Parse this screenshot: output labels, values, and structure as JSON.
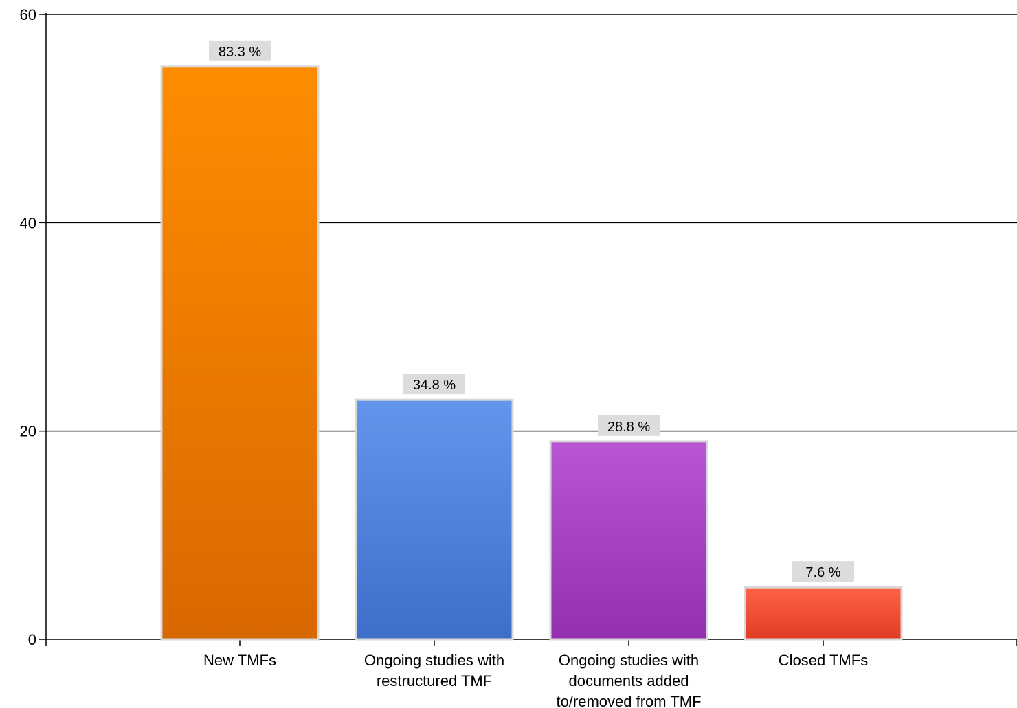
{
  "chart_data": {
    "type": "bar",
    "title": "",
    "xlabel": "",
    "ylabel": "",
    "categories": [
      [
        "New TMFs"
      ],
      [
        "Ongoing studies with",
        "restructured TMF"
      ],
      [
        "Ongoing studies with",
        "documents added",
        "to/removed from TMF"
      ],
      [
        "Closed TMFs"
      ]
    ],
    "values": [
      55,
      23,
      19,
      5
    ],
    "data_labels": [
      "83.3 %",
      "34.8 %",
      "28.8 %",
      "7.6 %"
    ],
    "ylim": [
      0,
      60
    ],
    "yticks": [
      0,
      20,
      40,
      60
    ],
    "grid": true,
    "colors": [
      {
        "top": "#ff8c00",
        "bottom": "#d86800"
      },
      {
        "top": "#6495ed",
        "bottom": "#3e6fc8"
      },
      {
        "top": "#ba55d3",
        "bottom": "#9430ad"
      },
      {
        "top": "#ff6347",
        "bottom": "#e03c25"
      }
    ]
  }
}
